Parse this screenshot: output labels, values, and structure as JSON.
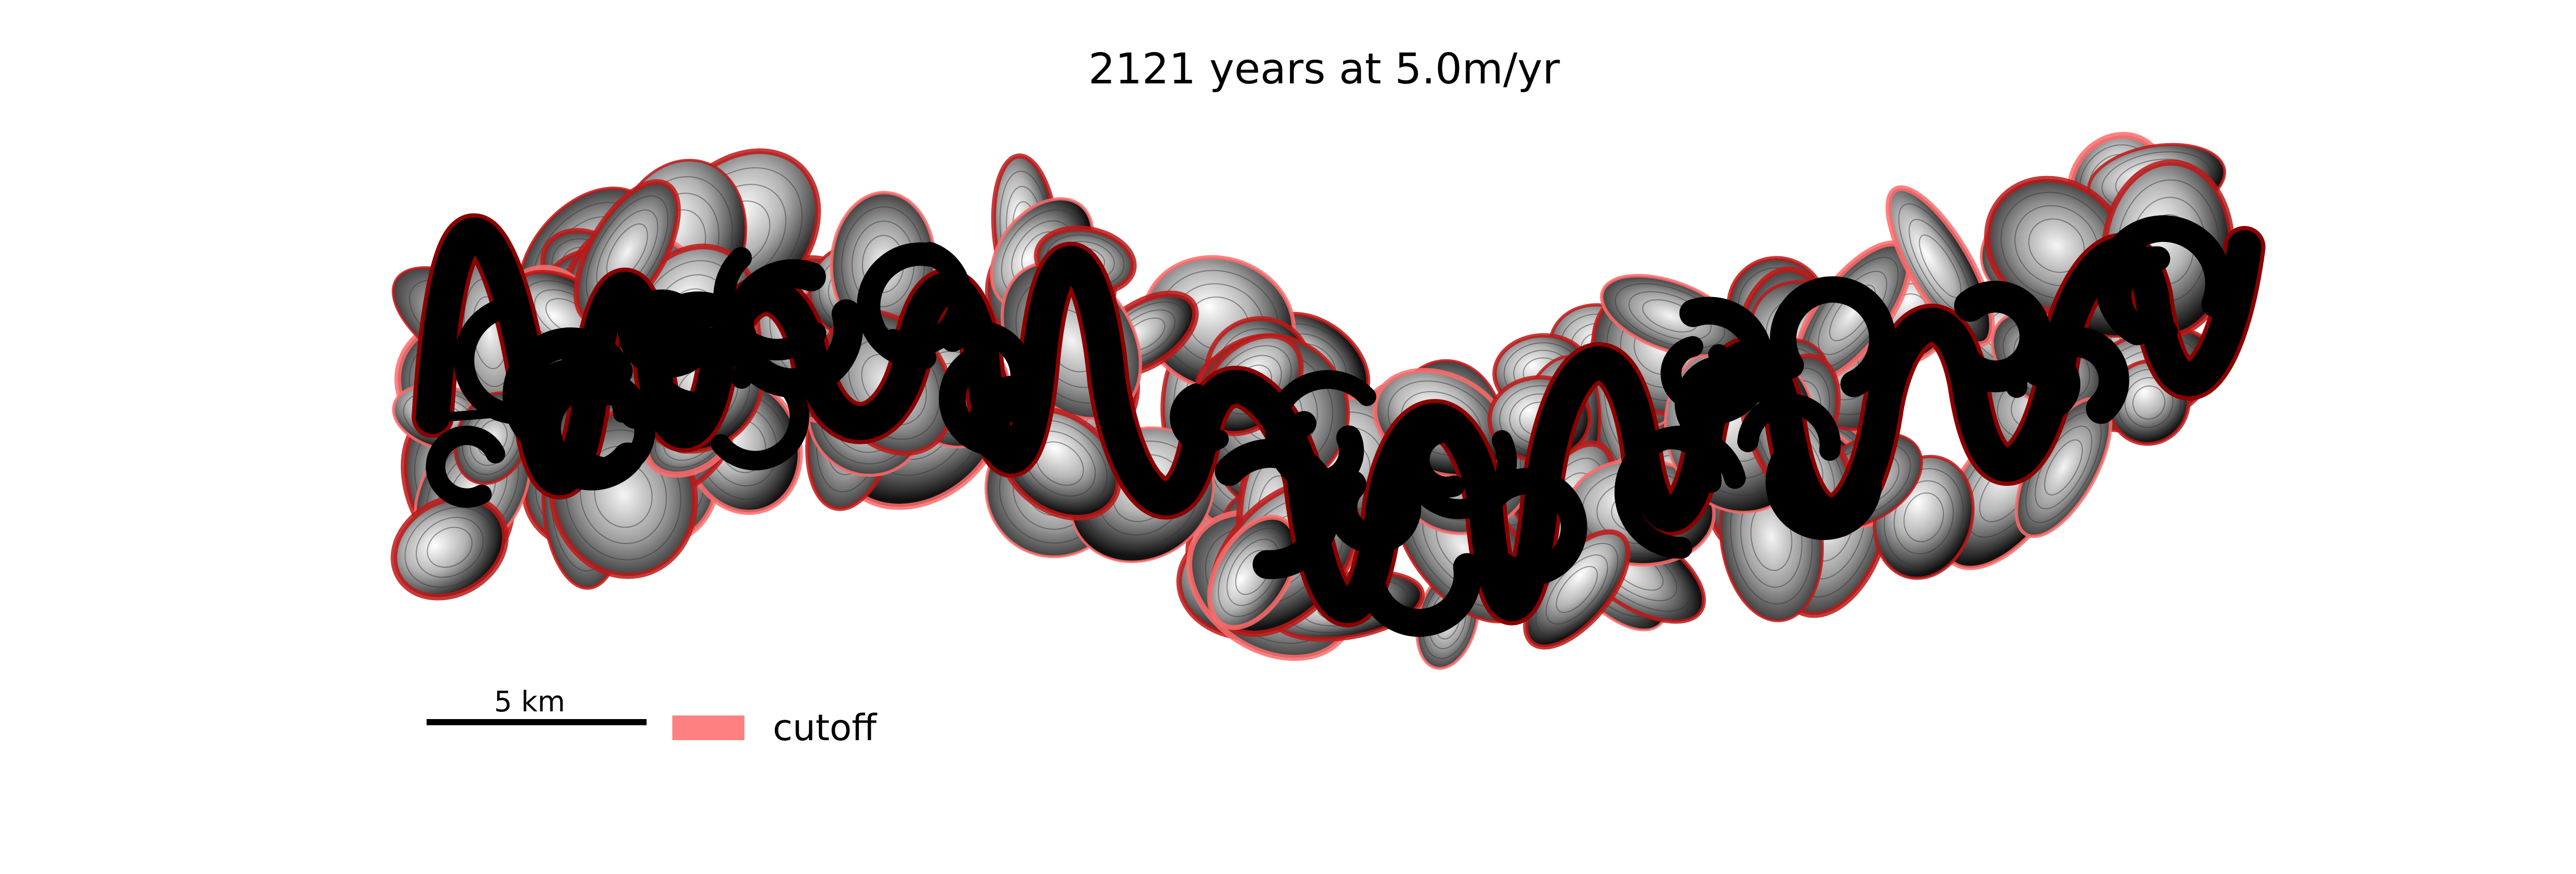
{
  "title": "2121 years at 5.0m/yr",
  "scale_bar": {
    "label": "5 km"
  },
  "legend": {
    "items": [
      {
        "label": "cutoff",
        "color": "#ff8080"
      }
    ]
  },
  "colors": {
    "channel": "#000000",
    "cutoff_outline": "#c01818",
    "cutoff_fill": "#ff8080"
  }
}
